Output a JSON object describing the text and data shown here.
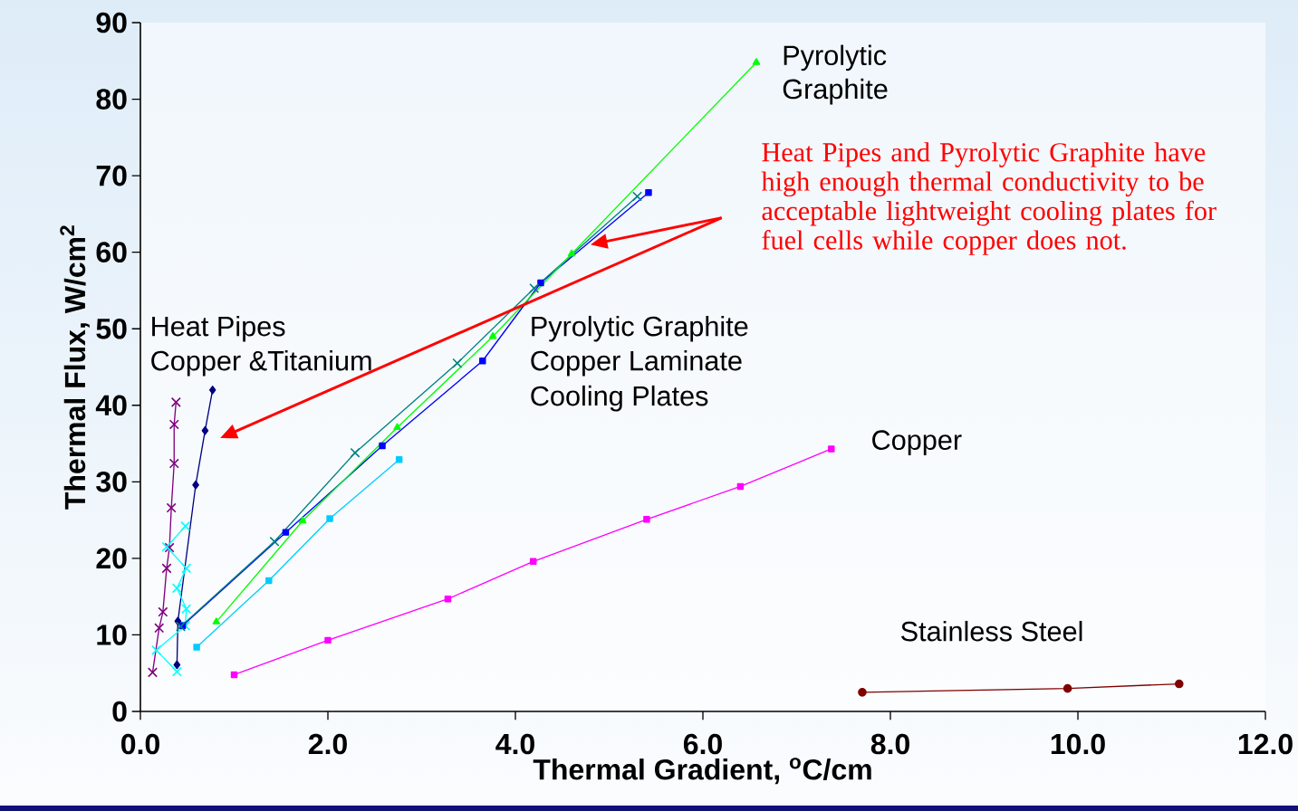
{
  "chart_data": {
    "type": "line",
    "xlabel": "Thermal Gradient, $^{o}$C/cm",
    "ylabel": "Thermal Flux, W/cm$^{2}$",
    "xlim": [
      0,
      12
    ],
    "ylim": [
      0,
      90
    ],
    "xticks": [
      {
        "value": 0,
        "label": "0.0"
      },
      {
        "value": 2,
        "label": "2.0"
      },
      {
        "value": 4,
        "label": "4.0"
      },
      {
        "value": 6,
        "label": "6.0"
      },
      {
        "value": 8,
        "label": "8.0"
      },
      {
        "value": 10,
        "label": "10.0"
      },
      {
        "value": 12,
        "label": "12.0"
      }
    ],
    "yticks": [
      0,
      10,
      20,
      30,
      40,
      50,
      60,
      70,
      80,
      90
    ],
    "grid": false,
    "series": [
      {
        "color": "#800080",
        "marker": "cross",
        "x": [
          0.13,
          0.2,
          0.24,
          0.28,
          0.31,
          0.33,
          0.36,
          0.36,
          0.38
        ],
        "values": [
          5.1,
          10.9,
          13.0,
          18.7,
          21.4,
          26.6,
          32.4,
          37.5,
          40.4
        ]
      },
      {
        "color": "#000080",
        "marker": "diamond",
        "x": [
          0.39,
          0.4,
          0.59,
          0.69,
          0.77
        ],
        "values": [
          6.1,
          11.8,
          29.6,
          36.7,
          42.0
        ]
      },
      {
        "color": "#00ffff",
        "marker": "cross",
        "x": [
          0.39,
          0.17,
          0.48,
          0.49,
          0.39,
          0.49,
          0.28,
          0.48
        ],
        "values": [
          5.2,
          8.0,
          11.2,
          13.4,
          16.1,
          18.7,
          21.5,
          24.2
        ]
      },
      {
        "color": "#0000ff",
        "marker": "square",
        "x": [
          0.45,
          1.55,
          2.58,
          3.65,
          4.27,
          5.42
        ],
        "values": [
          11.2,
          23.4,
          34.7,
          45.8,
          56.0,
          67.8
        ]
      },
      {
        "color": "#008080",
        "marker": "cross",
        "x": [
          0.43,
          1.43,
          2.29,
          3.38,
          4.2,
          5.3
        ],
        "values": [
          11.1,
          22.2,
          33.8,
          45.5,
          55.3,
          67.3
        ]
      },
      {
        "color": "#00ff00",
        "marker": "triangle",
        "x": [
          0.81,
          1.73,
          2.74,
          3.76,
          4.6,
          6.57
        ],
        "values": [
          11.7,
          24.9,
          37.1,
          49.0,
          59.8,
          84.8
        ]
      },
      {
        "color": "#00ccff",
        "marker": "square",
        "x": [
          0.6,
          1.37,
          2.02,
          2.76
        ],
        "values": [
          8.4,
          17.1,
          25.2,
          32.9
        ]
      },
      {
        "color": "#ff00ff",
        "marker": "square",
        "x": [
          1.0,
          2.0,
          3.28,
          4.19,
          5.4,
          6.4,
          7.37
        ],
        "values": [
          4.8,
          9.3,
          14.7,
          19.6,
          25.1,
          29.4,
          34.3
        ]
      },
      {
        "color": "#800000",
        "marker": "circle",
        "x": [
          7.7,
          9.89,
          11.08
        ],
        "values": [
          2.5,
          3.0,
          3.6
        ]
      }
    ],
    "annotations": [
      "Pyrolytic",
      "Graphite",
      "Heat Pipes",
      "Copper &Titanium",
      "Pyrolytic Graphite",
      "Copper Laminate",
      "Cooling Plates",
      "Copper",
      "Stainless Steel",
      "Heat Pipes and Pyrolytic Graphite have high enough thermal conductivity to be acceptable lightweight cooling plates for fuel cells while copper does not."
    ]
  }
}
